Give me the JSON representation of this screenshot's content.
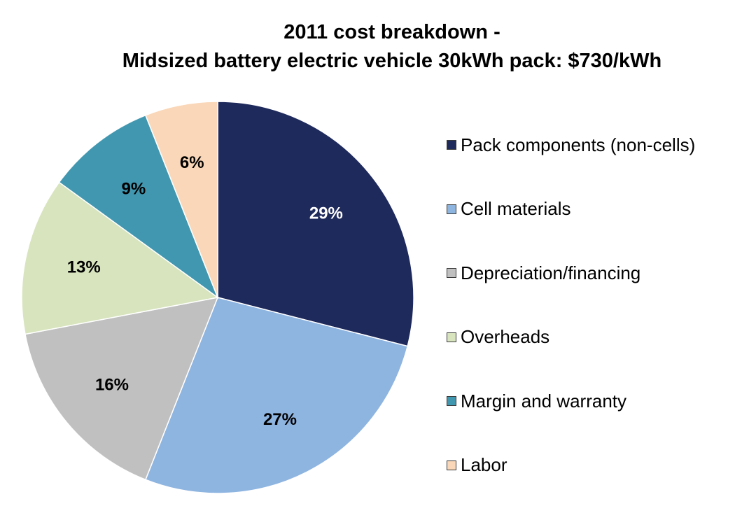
{
  "chart_data": {
    "type": "pie",
    "title": "2011 cost breakdown -",
    "subtitle": "Midsized battery electric vehicle 30kWh pack: $730/kWh",
    "slices": [
      {
        "label": "Pack components (non-cells)",
        "value": 29,
        "display": "29%",
        "color": "#1f2a5c",
        "label_color": "#ffffff"
      },
      {
        "label": "Cell materials",
        "value": 27,
        "display": "27%",
        "color": "#8eb4e0",
        "label_color": "#000000"
      },
      {
        "label": "Depreciation/financing",
        "value": 16,
        "display": "16%",
        "color": "#c0c0c0",
        "label_color": "#000000"
      },
      {
        "label": "Overheads",
        "value": 13,
        "display": "13%",
        "color": "#d7e4bd",
        "label_color": "#000000"
      },
      {
        "label": "Margin and warranty",
        "value": 9,
        "display": "9%",
        "color": "#4197b0",
        "label_color": "#000000"
      },
      {
        "label": "Labor",
        "value": 6,
        "display": "6%",
        "color": "#fad7b8",
        "label_color": "#000000"
      }
    ],
    "legend_position": "right",
    "start_angle": "12 o'clock",
    "direction": "clockwise"
  }
}
